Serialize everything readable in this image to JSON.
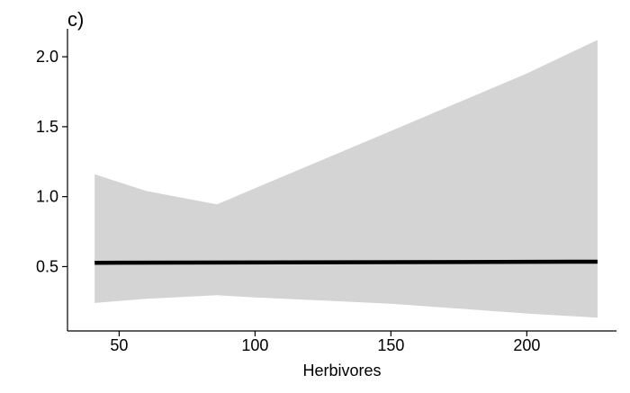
{
  "chart_data": {
    "type": "line",
    "panel_label": "c)",
    "title": "",
    "xlabel": "Herbivores",
    "ylabel": "",
    "xlim": [
      31,
      233
    ],
    "ylim": [
      0.04,
      2.2
    ],
    "x_ticks": [
      50,
      100,
      150,
      200
    ],
    "y_ticks": [
      0.5,
      1.0,
      1.5,
      2.0
    ],
    "x_tick_labels": [
      "50",
      "100",
      "150",
      "200"
    ],
    "y_tick_labels": [
      "0.5",
      "1.0",
      "1.5",
      "2.0"
    ],
    "grid": false,
    "legend": "none",
    "series": [
      {
        "x": [
          41,
          226
        ],
        "y": [
          0.527,
          0.535
        ],
        "color": "#000000"
      }
    ],
    "confidence_band": {
      "color": "#d4d4d4",
      "x": [
        41,
        60,
        86,
        100,
        150,
        200,
        226
      ],
      "upper": [
        1.16,
        1.04,
        0.945,
        1.06,
        1.47,
        1.88,
        2.12
      ],
      "lower": [
        0.24,
        0.27,
        0.295,
        0.28,
        0.235,
        0.165,
        0.135
      ]
    }
  }
}
